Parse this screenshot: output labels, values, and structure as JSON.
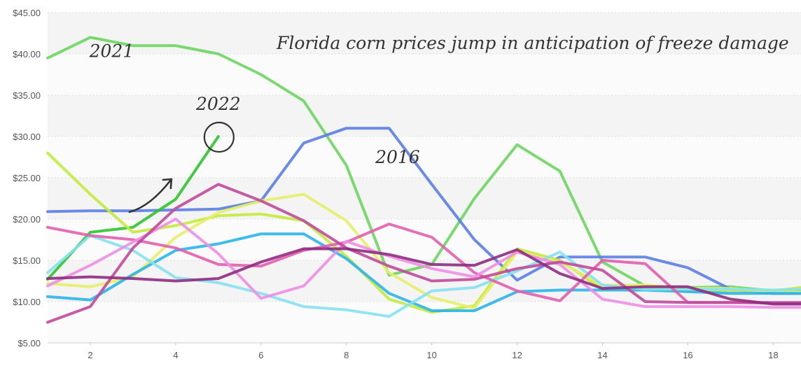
{
  "chart_data": {
    "type": "line",
    "title": "Florida corn prices jump in anticipation of freeze damage",
    "xlabel": "",
    "ylabel": "",
    "xlim": [
      1,
      18.65
    ],
    "ylim": [
      5,
      45
    ],
    "x_ticks": [
      2,
      4,
      6,
      8,
      10,
      12,
      14,
      16,
      18
    ],
    "y_ticks": [
      5,
      10,
      15,
      20,
      25,
      30,
      35,
      40,
      45
    ],
    "y_tick_labels": [
      "$5.00",
      "$10.00",
      "$15.00",
      "$20.00",
      "$25.00",
      "$30.00",
      "$35.00",
      "$40.00",
      "$45.00"
    ],
    "grid": "horizontal dotted, alternating light gray bands",
    "series": [
      {
        "name": "2021",
        "color": "#6dd65f",
        "x": [
          1,
          2,
          3,
          4,
          5,
          6,
          7,
          8,
          9,
          10,
          11,
          12,
          13,
          14,
          15,
          16,
          17,
          18,
          18.65
        ],
        "values": [
          39.5,
          42,
          41,
          41,
          40,
          37.5,
          34.3,
          26.5,
          13.2,
          14.5,
          22.5,
          29,
          25.8,
          14.8,
          11.9,
          11.7,
          11.8,
          11.3,
          11.4
        ]
      },
      {
        "name": "2016",
        "color": "#5b7ee3",
        "x": [
          1,
          2,
          3,
          4,
          5,
          6,
          7,
          8,
          9,
          10,
          11,
          12,
          13,
          14,
          15,
          16,
          17,
          18,
          18.65
        ],
        "values": [
          20.9,
          21,
          21,
          21.1,
          21.2,
          22.2,
          29.2,
          31,
          31,
          24.2,
          17.5,
          12.6,
          15.4,
          15.4,
          15.4,
          14.1,
          11.5,
          11,
          11
        ]
      },
      {
        "name": "2022",
        "color": "#2fc42f",
        "x": [
          1,
          2,
          3,
          4,
          5
        ],
        "values": [
          12.7,
          18.4,
          19,
          22.4,
          30
        ]
      },
      {
        "name": "",
        "color": "#c3ea3c",
        "x": [
          1,
          2,
          3,
          4,
          5,
          6,
          7,
          8,
          9,
          10,
          11,
          12,
          13,
          14,
          15,
          16,
          17,
          18,
          18.65
        ],
        "values": [
          28,
          23,
          18.4,
          19.2,
          20.4,
          20.6,
          19.8,
          15.5,
          10.3,
          8.7,
          9.5,
          16.4,
          15,
          11.5,
          11.5,
          11.3,
          11.3,
          11.3,
          11.7
        ]
      },
      {
        "name": "",
        "color": "#e6ee68",
        "x": [
          1,
          2,
          3,
          4,
          5,
          6,
          7,
          8,
          9,
          10,
          11,
          12,
          13,
          14,
          15,
          16,
          17,
          18,
          18.65
        ],
        "values": [
          12.2,
          11.8,
          13,
          17.8,
          20.8,
          22.2,
          23,
          19.8,
          13.5,
          10.5,
          9.2,
          16,
          14.8,
          12,
          12,
          11.6,
          11.6,
          11.2,
          11.1
        ]
      },
      {
        "name": "",
        "color": "#2ab4ea",
        "x": [
          1,
          2,
          3,
          4,
          5,
          6,
          7,
          8,
          9,
          10,
          11,
          12,
          13,
          14,
          15,
          16,
          17,
          18,
          18.65
        ],
        "values": [
          10.6,
          10.2,
          13.3,
          16.2,
          17,
          18.2,
          18.2,
          15.2,
          11,
          8.9,
          8.9,
          11.2,
          11.4,
          11.4,
          11.4,
          11.2,
          11,
          11,
          11
        ]
      },
      {
        "name": "",
        "color": "#86e1ef",
        "x": [
          1,
          2,
          3,
          4,
          5,
          6,
          7,
          8,
          9,
          10,
          11,
          12,
          13,
          14,
          15,
          16,
          17,
          18,
          18.65
        ],
        "values": [
          13.5,
          18,
          16.2,
          12.9,
          12.3,
          11,
          9.4,
          9,
          8.2,
          11.3,
          11.7,
          13.7,
          16,
          12,
          11.5,
          11.5,
          11.5,
          11.4,
          11.5
        ]
      },
      {
        "name": "",
        "color": "#e25fae",
        "x": [
          1,
          2,
          3,
          4,
          5,
          6,
          7,
          8,
          9,
          10,
          11,
          12,
          13,
          14,
          15,
          16,
          17,
          18,
          18.65
        ],
        "values": [
          19,
          18,
          17.5,
          16.5,
          14.5,
          14.3,
          16.2,
          17.2,
          19.4,
          17.8,
          13.5,
          11.3,
          10.1,
          15,
          14.6,
          9.9,
          9.9,
          9.8,
          9.8
        ]
      },
      {
        "name": "",
        "color": "#ee8ee4",
        "x": [
          1,
          2,
          3,
          4,
          5,
          6,
          7,
          8,
          9,
          10,
          11,
          12,
          13,
          14,
          15,
          16,
          17,
          18,
          18.65
        ],
        "values": [
          11.9,
          14.4,
          17.2,
          20,
          15.8,
          10.4,
          11.9,
          17.3,
          15.5,
          14,
          13,
          16,
          14.5,
          10.3,
          9.4,
          9.4,
          9.4,
          9.3,
          9.3
        ]
      },
      {
        "name": "",
        "color": "#c04a9a",
        "x": [
          1,
          2,
          3,
          4,
          5,
          6,
          7,
          8,
          9,
          10,
          11,
          12,
          13,
          14,
          15,
          16,
          17,
          18,
          18.65
        ],
        "values": [
          7.5,
          9.4,
          16.5,
          21.3,
          24.2,
          22.2,
          19.8,
          16.5,
          14.3,
          12.5,
          12.7,
          14,
          14.8,
          13.8,
          10,
          9.9,
          9.9,
          9.9,
          9.9
        ]
      },
      {
        "name": "",
        "color": "#8e2c7f",
        "x": [
          1,
          2,
          3,
          4,
          5,
          6,
          7,
          8,
          9,
          10,
          11,
          12,
          13,
          14,
          15,
          16,
          17,
          18,
          18.65
        ],
        "values": [
          12.8,
          13,
          12.8,
          12.5,
          12.8,
          14.8,
          16.4,
          16.4,
          15.7,
          14.5,
          14.4,
          16.3,
          13.4,
          11.6,
          11.8,
          11.8,
          10.3,
          9.7,
          9.7
        ]
      }
    ],
    "annotations": [
      {
        "text": "2021",
        "x": 2.5,
        "y": 39.6
      },
      {
        "text": "2022",
        "x": 5,
        "y": 33.2
      },
      {
        "text": "2016",
        "x": 9.2,
        "y": 26.8
      }
    ],
    "highlight": {
      "label": "2022",
      "x": 5,
      "y": 30
    }
  }
}
